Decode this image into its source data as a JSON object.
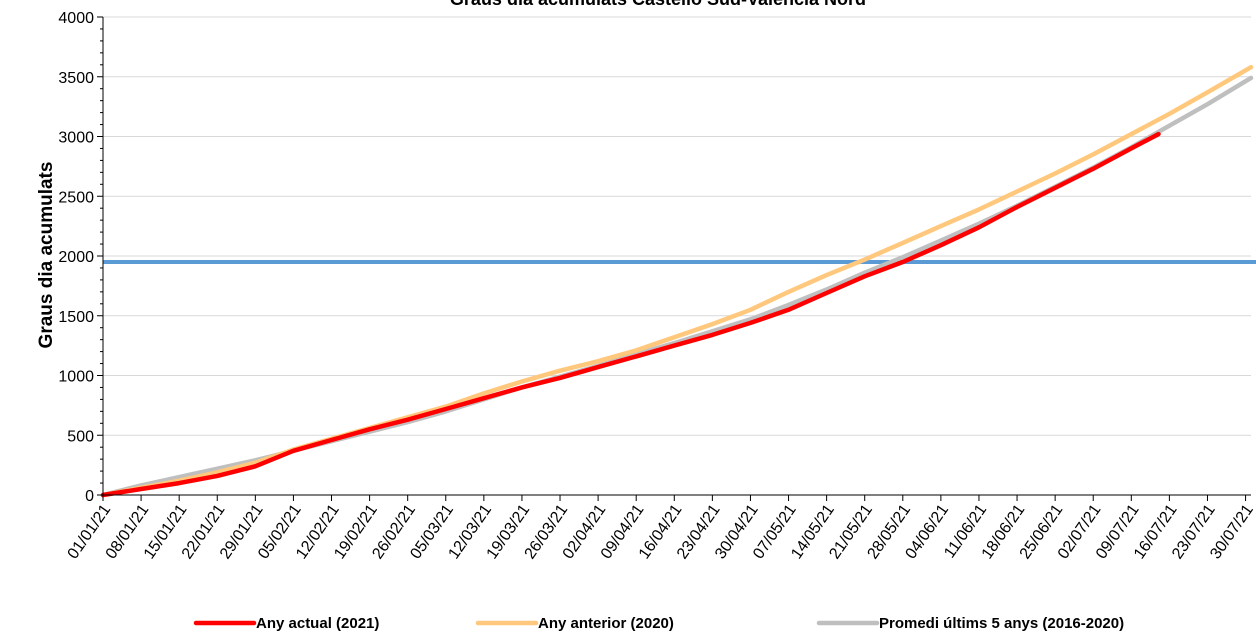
{
  "chart_data": {
    "type": "line",
    "title": "Graus dia acumulats Castelló Sud-València Nord",
    "xlabel": "",
    "ylabel": "Graus dia acumulats",
    "ylim": [
      0,
      4000
    ],
    "y_ticks": [
      0,
      500,
      1000,
      1500,
      2000,
      2500,
      3000,
      3500,
      4000
    ],
    "x_range": [
      "01/01/21",
      "31/07/21"
    ],
    "x_tick_labels": [
      "01/01/21",
      "08/01/21",
      "15/01/21",
      "22/01/21",
      "29/01/21",
      "05/02/21",
      "12/02/21",
      "19/02/21",
      "26/02/21",
      "05/03/21",
      "12/03/21",
      "19/03/21",
      "26/03/21",
      "02/04/21",
      "09/04/21",
      "16/04/21",
      "23/04/21",
      "30/04/21",
      "07/05/21",
      "14/05/21",
      "21/05/21",
      "28/05/21",
      "04/06/21",
      "11/06/21",
      "18/06/21",
      "25/06/21",
      "02/07/21",
      "09/07/21",
      "16/07/21",
      "23/07/21",
      "30/07/21"
    ],
    "grid": "horizontal",
    "legend_position": "bottom",
    "threshold": {
      "value": 1950,
      "color": "#5b9bd5"
    },
    "series": [
      {
        "name": "Any actual (2021)",
        "color": "#ff0000",
        "x": [
          "01/01/21",
          "08/01/21",
          "15/01/21",
          "22/01/21",
          "29/01/21",
          "05/02/21",
          "12/02/21",
          "19/02/21",
          "26/02/21",
          "05/03/21",
          "12/03/21",
          "19/03/21",
          "26/03/21",
          "02/04/21",
          "09/04/21",
          "16/04/21",
          "23/04/21",
          "30/04/21",
          "07/05/21",
          "14/05/21",
          "21/05/21",
          "28/05/21",
          "04/06/21",
          "11/06/21",
          "18/06/21",
          "25/06/21",
          "02/07/21",
          "09/07/21",
          "14/07/21"
        ],
        "y": [
          0,
          50,
          100,
          160,
          240,
          370,
          460,
          550,
          630,
          720,
          810,
          900,
          980,
          1070,
          1160,
          1250,
          1340,
          1440,
          1550,
          1690,
          1830,
          1950,
          2090,
          2240,
          2410,
          2570,
          2730,
          2900,
          3020
        ]
      },
      {
        "name": "Any anterior (2020)",
        "color": "#ffc87c",
        "x": [
          "01/01/21",
          "08/01/21",
          "15/01/21",
          "22/01/21",
          "29/01/21",
          "05/02/21",
          "12/02/21",
          "19/02/21",
          "26/02/21",
          "05/03/21",
          "12/03/21",
          "19/03/21",
          "26/03/21",
          "02/04/21",
          "09/04/21",
          "16/04/21",
          "23/04/21",
          "30/04/21",
          "07/05/21",
          "14/05/21",
          "21/05/21",
          "28/05/21",
          "04/06/21",
          "11/06/21",
          "18/06/21",
          "25/06/21",
          "02/07/21",
          "09/07/21",
          "16/07/21",
          "23/07/21",
          "31/07/21"
        ],
        "y": [
          0,
          60,
          120,
          190,
          270,
          380,
          470,
          560,
          650,
          740,
          850,
          950,
          1040,
          1120,
          1210,
          1320,
          1430,
          1550,
          1700,
          1840,
          1970,
          2110,
          2250,
          2390,
          2540,
          2690,
          2850,
          3020,
          3190,
          3370,
          3580
        ]
      },
      {
        "name": "Promedi últims 5 anys (2016-2020)",
        "color": "#bfbfbf",
        "x": [
          "01/01/21",
          "08/01/21",
          "15/01/21",
          "22/01/21",
          "29/01/21",
          "05/02/21",
          "12/02/21",
          "19/02/21",
          "26/02/21",
          "05/03/21",
          "12/03/21",
          "19/03/21",
          "26/03/21",
          "02/04/21",
          "09/04/21",
          "16/04/21",
          "23/04/21",
          "30/04/21",
          "07/05/21",
          "14/05/21",
          "21/05/21",
          "28/05/21",
          "04/06/21",
          "11/06/21",
          "18/06/21",
          "25/06/21",
          "02/07/21",
          "09/07/21",
          "16/07/21",
          "23/07/21",
          "31/07/21"
        ],
        "y": [
          0,
          80,
          150,
          220,
          290,
          370,
          450,
          530,
          610,
          700,
          800,
          900,
          990,
          1080,
          1180,
          1270,
          1370,
          1470,
          1590,
          1720,
          1860,
          1990,
          2130,
          2270,
          2420,
          2580,
          2740,
          2910,
          3090,
          3270,
          3490
        ]
      }
    ]
  }
}
